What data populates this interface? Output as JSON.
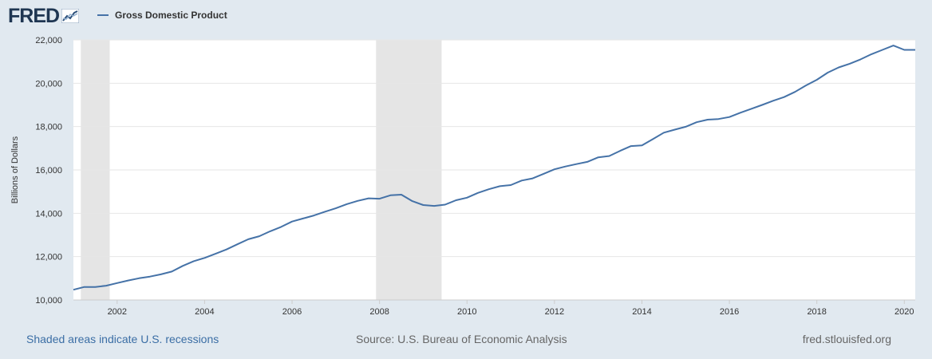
{
  "header": {
    "logo_text": "FRED",
    "legend_label": "Gross Domestic Product"
  },
  "footer": {
    "recession_note": "Shaded areas indicate U.S. recessions",
    "source": "Source: U.S. Bureau of Economic Analysis",
    "site": "fred.stlouisfed.org"
  },
  "colors": {
    "series": "#4572a7",
    "background": "#e1e9f0",
    "plot_background": "#ffffff",
    "recession_shade": "#e5e5e5",
    "logo": "#1f3652"
  },
  "icons": {
    "logo_mark": "line-chart-icon"
  },
  "chart_data": {
    "type": "line",
    "title": "",
    "xlabel": "",
    "ylabel": "Billions of Dollars",
    "ylim": [
      10000,
      22000
    ],
    "xlim": [
      2001.0,
      2020.25
    ],
    "yticks": [
      10000,
      12000,
      14000,
      16000,
      18000,
      20000,
      22000
    ],
    "ytick_labels": [
      "10,000",
      "12,000",
      "14,000",
      "16,000",
      "18,000",
      "20,000",
      "22,000"
    ],
    "xticks": [
      2002,
      2004,
      2006,
      2008,
      2010,
      2012,
      2014,
      2016,
      2018,
      2020
    ],
    "xtick_labels": [
      "2002",
      "2004",
      "2006",
      "2008",
      "2010",
      "2012",
      "2014",
      "2016",
      "2018",
      "2020"
    ],
    "grid": true,
    "legend_position": "top-left",
    "recessions": [
      [
        2001.17,
        2001.83
      ],
      [
        2007.92,
        2009.42
      ]
    ],
    "series": [
      {
        "name": "Gross Domestic Product",
        "x": [
          2001.0,
          2001.25,
          2001.5,
          2001.75,
          2002.0,
          2002.25,
          2002.5,
          2002.75,
          2003.0,
          2003.25,
          2003.5,
          2003.75,
          2004.0,
          2004.25,
          2004.5,
          2004.75,
          2005.0,
          2005.25,
          2005.5,
          2005.75,
          2006.0,
          2006.25,
          2006.5,
          2006.75,
          2007.0,
          2007.25,
          2007.5,
          2007.75,
          2008.0,
          2008.25,
          2008.5,
          2008.75,
          2009.0,
          2009.25,
          2009.5,
          2009.75,
          2010.0,
          2010.25,
          2010.5,
          2010.75,
          2011.0,
          2011.25,
          2011.5,
          2011.75,
          2012.0,
          2012.25,
          2012.5,
          2012.75,
          2013.0,
          2013.25,
          2013.5,
          2013.75,
          2014.0,
          2014.25,
          2014.5,
          2014.75,
          2015.0,
          2015.25,
          2015.5,
          2015.75,
          2016.0,
          2016.25,
          2016.5,
          2016.75,
          2017.0,
          2017.25,
          2017.5,
          2017.75,
          2018.0,
          2018.25,
          2018.5,
          2018.75,
          2019.0,
          2019.25,
          2019.5,
          2019.75,
          2020.0,
          2020.25
        ],
        "values": [
          10470,
          10600,
          10600,
          10660,
          10780,
          10900,
          11000,
          11080,
          11180,
          11310,
          11570,
          11790,
          11940,
          12130,
          12330,
          12570,
          12800,
          12940,
          13170,
          13370,
          13620,
          13760,
          13900,
          14070,
          14230,
          14420,
          14570,
          14690,
          14670,
          14830,
          14860,
          14560,
          14380,
          14340,
          14400,
          14600,
          14720,
          14940,
          15110,
          15250,
          15300,
          15510,
          15610,
          15820,
          16030,
          16160,
          16270,
          16370,
          16580,
          16640,
          16880,
          17100,
          17130,
          17420,
          17720,
          17860,
          17990,
          18200,
          18320,
          18350,
          18440,
          18640,
          18820,
          19000,
          19190,
          19360,
          19600,
          19900,
          20160,
          20490,
          20730,
          20900,
          21100,
          21340,
          21540,
          21740,
          21540,
          21540
        ]
      }
    ]
  }
}
